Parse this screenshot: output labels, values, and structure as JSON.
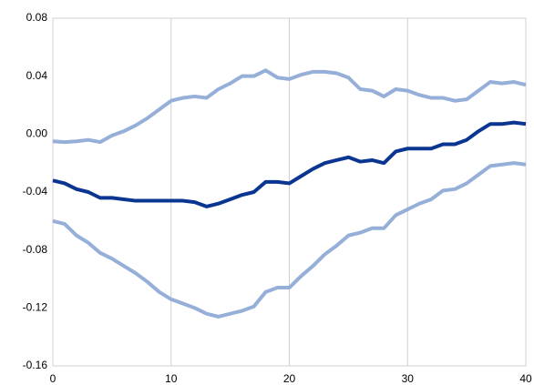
{
  "chart_data": {
    "type": "line",
    "x": [
      0,
      1,
      2,
      3,
      4,
      5,
      6,
      7,
      8,
      9,
      10,
      11,
      12,
      13,
      14,
      15,
      16,
      17,
      18,
      19,
      20,
      21,
      22,
      23,
      24,
      25,
      26,
      27,
      28,
      29,
      30,
      31,
      32,
      33,
      34,
      35,
      36,
      37,
      38,
      39,
      40
    ],
    "series": [
      {
        "color": "#95afd8",
        "values": [
          -0.005,
          -0.0055,
          -0.005,
          -0.004,
          -0.0055,
          -0.001,
          0.002,
          0.006,
          0.011,
          0.017,
          0.023,
          0.025,
          0.026,
          0.025,
          0.031,
          0.035,
          0.04,
          0.04,
          0.044,
          0.039,
          0.038,
          0.041,
          0.043,
          0.043,
          0.042,
          0.039,
          0.031,
          0.03,
          0.026,
          0.031,
          0.03,
          0.027,
          0.025,
          0.025,
          0.023,
          0.024,
          0.03,
          0.036,
          0.035,
          0.036,
          0.034
        ]
      },
      {
        "color": "#0a3591",
        "values": [
          -0.032,
          -0.034,
          -0.038,
          -0.04,
          -0.044,
          -0.044,
          -0.045,
          -0.046,
          -0.046,
          -0.046,
          -0.046,
          -0.046,
          -0.047,
          -0.05,
          -0.048,
          -0.045,
          -0.042,
          -0.04,
          -0.033,
          -0.033,
          -0.034,
          -0.029,
          -0.024,
          -0.02,
          -0.018,
          -0.016,
          -0.019,
          -0.018,
          -0.02,
          -0.012,
          -0.01,
          -0.01,
          -0.01,
          -0.007,
          -0.007,
          -0.004,
          0.002,
          0.007,
          0.007,
          0.008,
          0.007
        ]
      },
      {
        "color": "#95afd8",
        "values": [
          -0.06,
          -0.062,
          -0.07,
          -0.075,
          -0.082,
          -0.086,
          -0.091,
          -0.096,
          -0.102,
          -0.109,
          -0.114,
          -0.117,
          -0.12,
          -0.124,
          -0.126,
          -0.124,
          -0.122,
          -0.119,
          -0.109,
          -0.106,
          -0.106,
          -0.098,
          -0.091,
          -0.083,
          -0.077,
          -0.07,
          -0.068,
          -0.065,
          -0.065,
          -0.056,
          -0.052,
          -0.048,
          -0.045,
          -0.039,
          -0.038,
          -0.034,
          -0.028,
          -0.022,
          -0.021,
          -0.02,
          -0.021
        ]
      }
    ],
    "xlim": [
      0,
      40
    ],
    "xticks": [
      0,
      10,
      20,
      30,
      40
    ],
    "ylim": [
      -0.16,
      0.08
    ],
    "yticks": [
      0.08,
      0.04,
      {
        "value": 0,
        "label": "0.00"
      },
      -0.04,
      -0.08,
      -0.12,
      -0.16
    ],
    "grid": "x"
  }
}
